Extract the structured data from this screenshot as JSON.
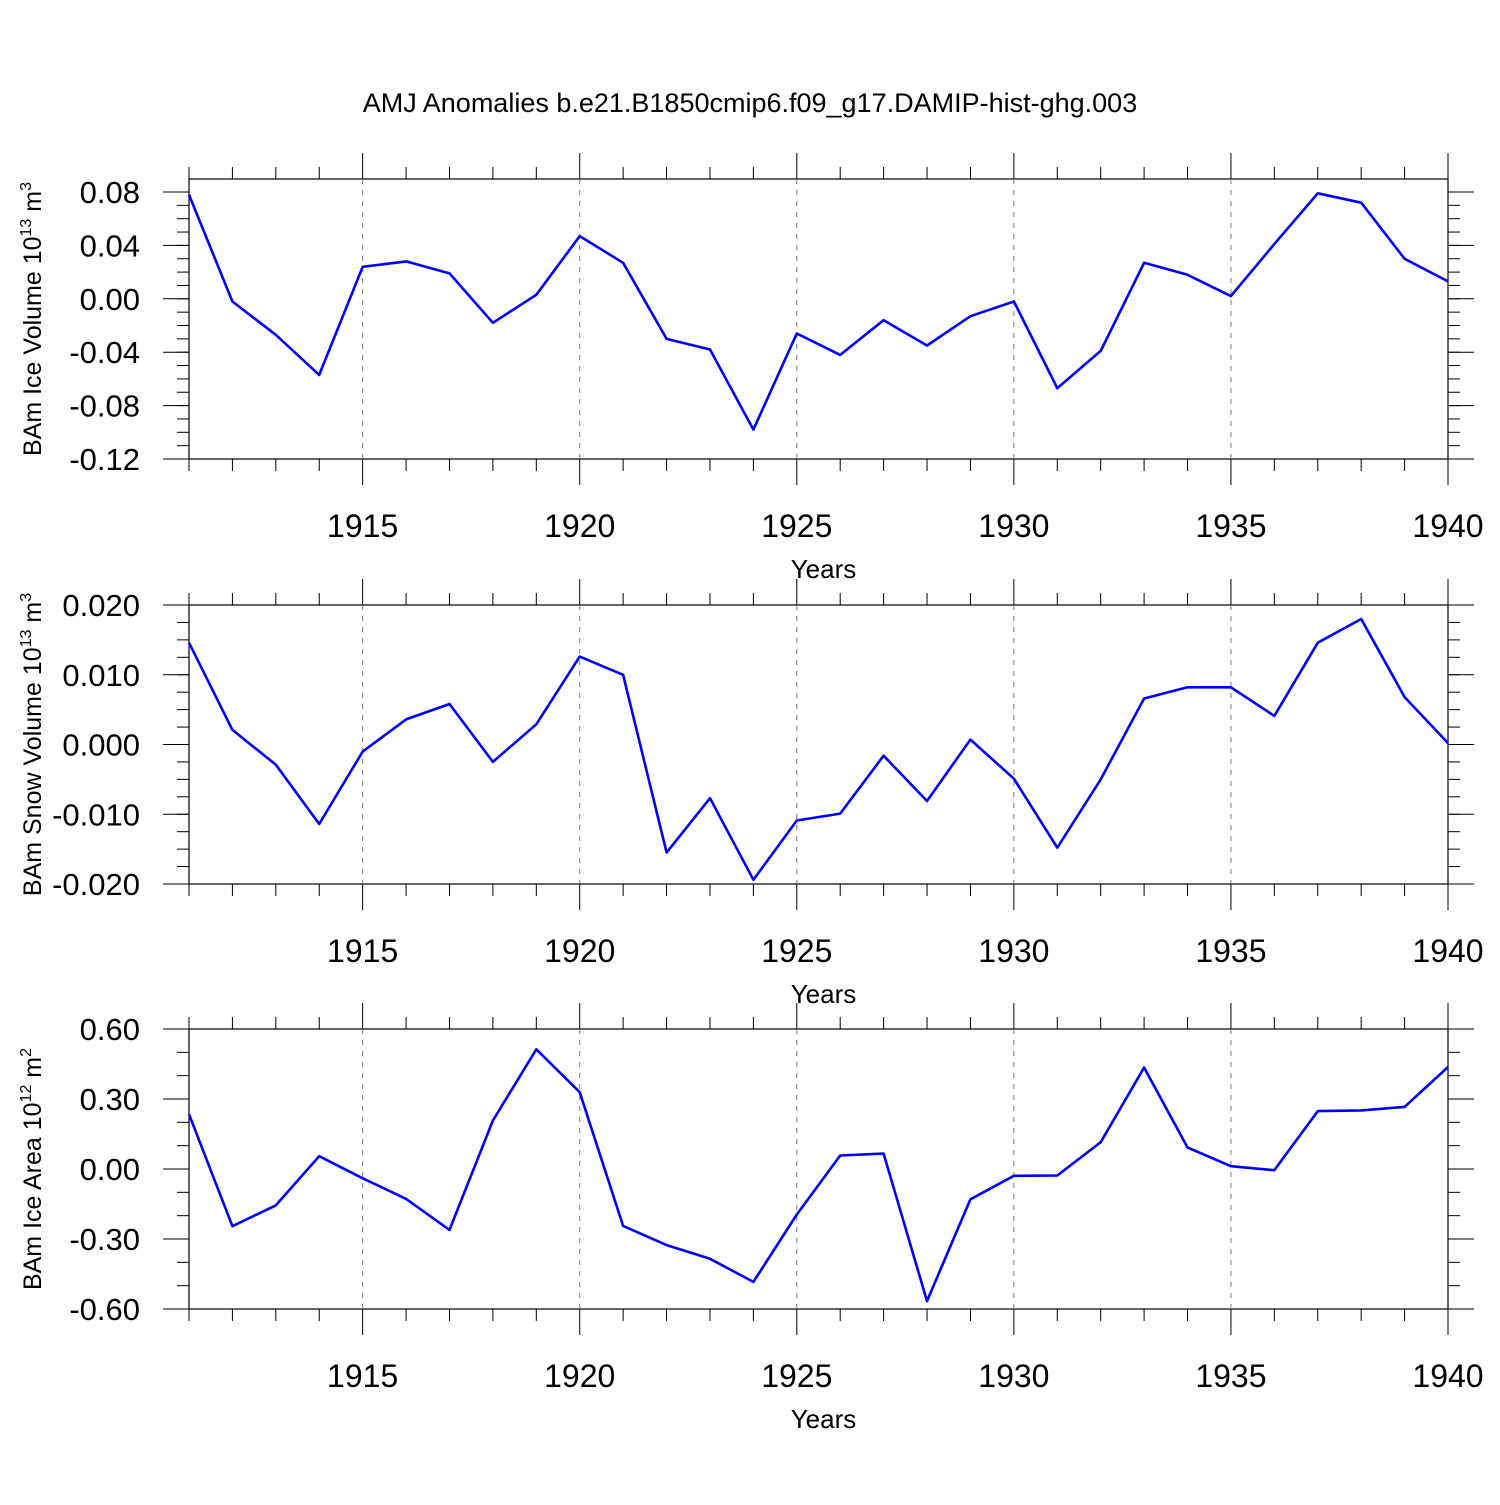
{
  "title": "AMJ Anomalies b.e21.B1850cmip6.f09_g17.DAMIP-hist-ghg.003",
  "line_color": "#0000ff",
  "chart_data": [
    {
      "type": "line",
      "ylabel_main": "BAm Ice Volume 10",
      "ylabel_exp": "13",
      "ylabel_unit": " m",
      "ylabel_unit_exp": "3",
      "xlabel": "Years",
      "xlim": [
        1911,
        1940
      ],
      "ylim": [
        -0.12,
        0.09
      ],
      "xticks": [
        "1915",
        "1920",
        "1925",
        "1930",
        "1935",
        "1940"
      ],
      "yticks": [
        "0.08",
        "0.04",
        "0.00",
        "-0.04",
        "-0.08",
        "-0.12"
      ],
      "x": [
        1911,
        1912,
        1913,
        1914,
        1915,
        1916,
        1917,
        1918,
        1919,
        1920,
        1921,
        1922,
        1923,
        1924,
        1925,
        1926,
        1927,
        1928,
        1929,
        1930,
        1931,
        1932,
        1933,
        1934,
        1935,
        1936,
        1937,
        1938,
        1939,
        1940
      ],
      "values": [
        0.078,
        -0.002,
        -0.027,
        -0.057,
        0.024,
        0.028,
        0.019,
        -0.018,
        0.003,
        0.047,
        0.027,
        -0.03,
        -0.038,
        -0.098,
        -0.026,
        -0.042,
        -0.016,
        -0.035,
        -0.013,
        -0.002,
        -0.067,
        -0.039,
        0.027,
        0.018,
        0.002,
        0.041,
        0.079,
        0.072,
        0.03,
        0.013
      ]
    },
    {
      "type": "line",
      "ylabel_main": "BAm Snow Volume 10",
      "ylabel_exp": "13",
      "ylabel_unit": " m",
      "ylabel_unit_exp": "3",
      "xlabel": "Years",
      "xlim": [
        1911,
        1940
      ],
      "ylim": [
        -0.02,
        0.02
      ],
      "xticks": [
        "1915",
        "1920",
        "1925",
        "1930",
        "1935",
        "1940"
      ],
      "yticks": [
        "0.020",
        "0.010",
        "0.000",
        "-0.010",
        "-0.020"
      ],
      "x": [
        1911,
        1912,
        1913,
        1914,
        1915,
        1916,
        1917,
        1918,
        1919,
        1920,
        1921,
        1922,
        1923,
        1924,
        1925,
        1926,
        1927,
        1928,
        1929,
        1930,
        1931,
        1932,
        1933,
        1934,
        1935,
        1936,
        1937,
        1938,
        1939,
        1940
      ],
      "values": [
        0.0146,
        0.0021,
        -0.0029,
        -0.0114,
        -0.001,
        0.0036,
        0.0058,
        -0.0025,
        0.0029,
        0.0126,
        0.01,
        -0.0155,
        -0.0077,
        -0.0194,
        -0.0109,
        -0.0099,
        -0.0016,
        -0.0081,
        0.0007,
        -0.0049,
        -0.0148,
        -0.005,
        0.0066,
        0.0082,
        0.0082,
        0.0041,
        0.0146,
        0.018,
        0.0068,
        0.0002
      ]
    },
    {
      "type": "line",
      "ylabel_main": "BAm Ice Area 10",
      "ylabel_exp": "12",
      "ylabel_unit": " m",
      "ylabel_unit_exp": "2",
      "xlabel": "Years",
      "xlim": [
        1911,
        1940
      ],
      "ylim": [
        -0.6,
        0.6
      ],
      "xticks": [
        "1915",
        "1920",
        "1925",
        "1930",
        "1935",
        "1940"
      ],
      "yticks": [
        "0.60",
        "0.30",
        "0.00",
        "-0.30",
        "-0.60"
      ],
      "x": [
        1911,
        1912,
        1913,
        1914,
        1915,
        1916,
        1917,
        1918,
        1919,
        1920,
        1921,
        1922,
        1923,
        1924,
        1925,
        1926,
        1927,
        1928,
        1929,
        1930,
        1931,
        1932,
        1933,
        1934,
        1935,
        1936,
        1937,
        1938,
        1939,
        1940
      ],
      "values": [
        0.235,
        -0.245,
        -0.156,
        0.055,
        -0.04,
        -0.128,
        -0.261,
        0.208,
        0.513,
        0.329,
        -0.244,
        -0.326,
        -0.385,
        -0.484,
        -0.195,
        0.058,
        0.066,
        -0.566,
        -0.13,
        -0.029,
        -0.028,
        0.115,
        0.435,
        0.092,
        0.012,
        -0.005,
        0.248,
        0.251,
        0.266,
        0.437
      ]
    }
  ]
}
